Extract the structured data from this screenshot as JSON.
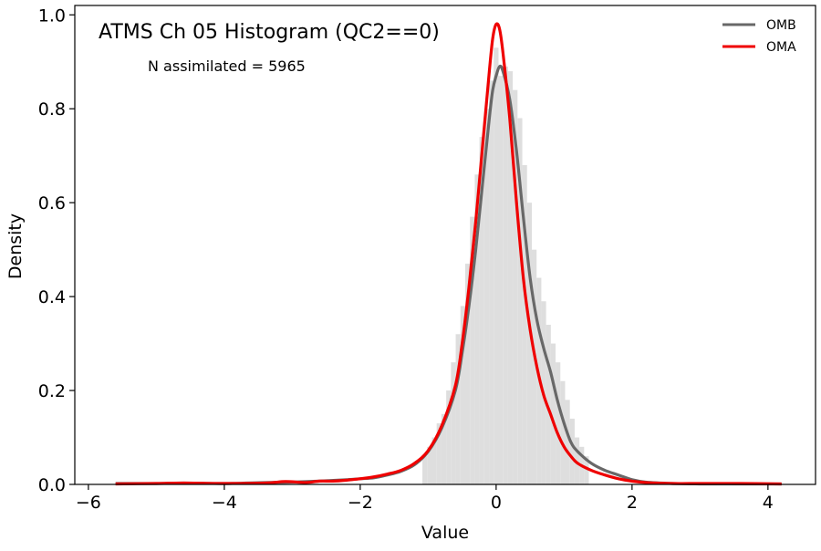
{
  "chart_data": {
    "type": "line",
    "title": "ATMS Ch 05 Histogram (QC2==0)",
    "annotation": "N assimilated = 5965",
    "xlabel": "Value",
    "ylabel": "Density",
    "xlim": [
      -6.2,
      4.7
    ],
    "ylim": [
      0,
      1.02
    ],
    "xticks": [
      -6,
      -4,
      -2,
      0,
      2,
      4
    ],
    "yticks": [
      0.0,
      0.2,
      0.4,
      0.6,
      0.8,
      1.0
    ],
    "xtick_labels": [
      "−6",
      "−4",
      "−2",
      "0",
      "2",
      "4"
    ],
    "ytick_labels": [
      "0.0",
      "0.2",
      "0.4",
      "0.6",
      "0.8",
      "1.0"
    ],
    "grid": false,
    "legend_position": "top-right",
    "histogram": {
      "color": "#dedede",
      "bin_width": 0.07,
      "bins": [
        [
          -1.05,
          0.06
        ],
        [
          -0.98,
          0.08
        ],
        [
          -0.91,
          0.1
        ],
        [
          -0.84,
          0.13
        ],
        [
          -0.77,
          0.15
        ],
        [
          -0.7,
          0.2
        ],
        [
          -0.63,
          0.26
        ],
        [
          -0.56,
          0.32
        ],
        [
          -0.49,
          0.38
        ],
        [
          -0.42,
          0.47
        ],
        [
          -0.35,
          0.57
        ],
        [
          -0.28,
          0.66
        ],
        [
          -0.21,
          0.74
        ],
        [
          -0.14,
          0.8
        ],
        [
          -0.07,
          0.86
        ],
        [
          0.0,
          0.93
        ],
        [
          0.07,
          0.87
        ],
        [
          0.14,
          0.89
        ],
        [
          0.21,
          0.88
        ],
        [
          0.28,
          0.84
        ],
        [
          0.35,
          0.78
        ],
        [
          0.42,
          0.68
        ],
        [
          0.49,
          0.6
        ],
        [
          0.56,
          0.5
        ],
        [
          0.63,
          0.44
        ],
        [
          0.7,
          0.39
        ],
        [
          0.77,
          0.34
        ],
        [
          0.84,
          0.3
        ],
        [
          0.91,
          0.26
        ],
        [
          0.98,
          0.22
        ],
        [
          1.05,
          0.18
        ],
        [
          1.12,
          0.14
        ],
        [
          1.19,
          0.1
        ],
        [
          1.26,
          0.08
        ],
        [
          1.33,
          0.06
        ]
      ]
    },
    "series": [
      {
        "name": "OMB",
        "color": "#686868",
        "points": [
          [
            -5.6,
            0.002
          ],
          [
            -5.0,
            0.002
          ],
          [
            -4.6,
            0.003
          ],
          [
            -4.0,
            0.002
          ],
          [
            -3.4,
            0.004
          ],
          [
            -3.0,
            0.005
          ],
          [
            -2.6,
            0.007
          ],
          [
            -2.2,
            0.01
          ],
          [
            -2.0,
            0.012
          ],
          [
            -1.8,
            0.014
          ],
          [
            -1.6,
            0.02
          ],
          [
            -1.4,
            0.028
          ],
          [
            -1.2,
            0.042
          ],
          [
            -1.0,
            0.07
          ],
          [
            -0.8,
            0.12
          ],
          [
            -0.6,
            0.2
          ],
          [
            -0.5,
            0.28
          ],
          [
            -0.4,
            0.38
          ],
          [
            -0.3,
            0.5
          ],
          [
            -0.2,
            0.64
          ],
          [
            -0.1,
            0.78
          ],
          [
            -0.05,
            0.84
          ],
          [
            0.0,
            0.87
          ],
          [
            0.05,
            0.89
          ],
          [
            0.1,
            0.88
          ],
          [
            0.2,
            0.82
          ],
          [
            0.3,
            0.71
          ],
          [
            0.4,
            0.57
          ],
          [
            0.5,
            0.44
          ],
          [
            0.6,
            0.35
          ],
          [
            0.7,
            0.29
          ],
          [
            0.8,
            0.24
          ],
          [
            0.9,
            0.18
          ],
          [
            1.0,
            0.13
          ],
          [
            1.1,
            0.09
          ],
          [
            1.2,
            0.07
          ],
          [
            1.4,
            0.045
          ],
          [
            1.6,
            0.03
          ],
          [
            1.8,
            0.02
          ],
          [
            2.0,
            0.01
          ],
          [
            2.2,
            0.005
          ],
          [
            2.6,
            0.002
          ],
          [
            3.0,
            0.001
          ],
          [
            3.6,
            0.001
          ],
          [
            4.2,
            0.001
          ]
        ]
      },
      {
        "name": "OMA",
        "color": "#ef0000",
        "points": [
          [
            -5.6,
            0.001
          ],
          [
            -5.0,
            0.002
          ],
          [
            -4.6,
            0.003
          ],
          [
            -4.0,
            0.002
          ],
          [
            -3.4,
            0.003
          ],
          [
            -3.1,
            0.006
          ],
          [
            -2.8,
            0.004
          ],
          [
            -2.6,
            0.007
          ],
          [
            -2.4,
            0.007
          ],
          [
            -2.2,
            0.009
          ],
          [
            -2.0,
            0.012
          ],
          [
            -1.8,
            0.016
          ],
          [
            -1.6,
            0.022
          ],
          [
            -1.4,
            0.03
          ],
          [
            -1.2,
            0.045
          ],
          [
            -1.0,
            0.072
          ],
          [
            -0.8,
            0.125
          ],
          [
            -0.6,
            0.21
          ],
          [
            -0.5,
            0.3
          ],
          [
            -0.4,
            0.42
          ],
          [
            -0.3,
            0.56
          ],
          [
            -0.2,
            0.72
          ],
          [
            -0.1,
            0.88
          ],
          [
            -0.05,
            0.95
          ],
          [
            0.0,
            0.98
          ],
          [
            0.05,
            0.97
          ],
          [
            0.1,
            0.92
          ],
          [
            0.2,
            0.78
          ],
          [
            0.3,
            0.6
          ],
          [
            0.4,
            0.44
          ],
          [
            0.5,
            0.33
          ],
          [
            0.6,
            0.25
          ],
          [
            0.7,
            0.19
          ],
          [
            0.8,
            0.15
          ],
          [
            0.9,
            0.11
          ],
          [
            1.0,
            0.08
          ],
          [
            1.1,
            0.06
          ],
          [
            1.2,
            0.045
          ],
          [
            1.4,
            0.03
          ],
          [
            1.6,
            0.02
          ],
          [
            1.8,
            0.012
          ],
          [
            2.0,
            0.007
          ],
          [
            2.2,
            0.004
          ],
          [
            2.6,
            0.002
          ],
          [
            3.0,
            0.002
          ],
          [
            3.6,
            0.002
          ],
          [
            4.2,
            0.001
          ]
        ]
      }
    ]
  }
}
